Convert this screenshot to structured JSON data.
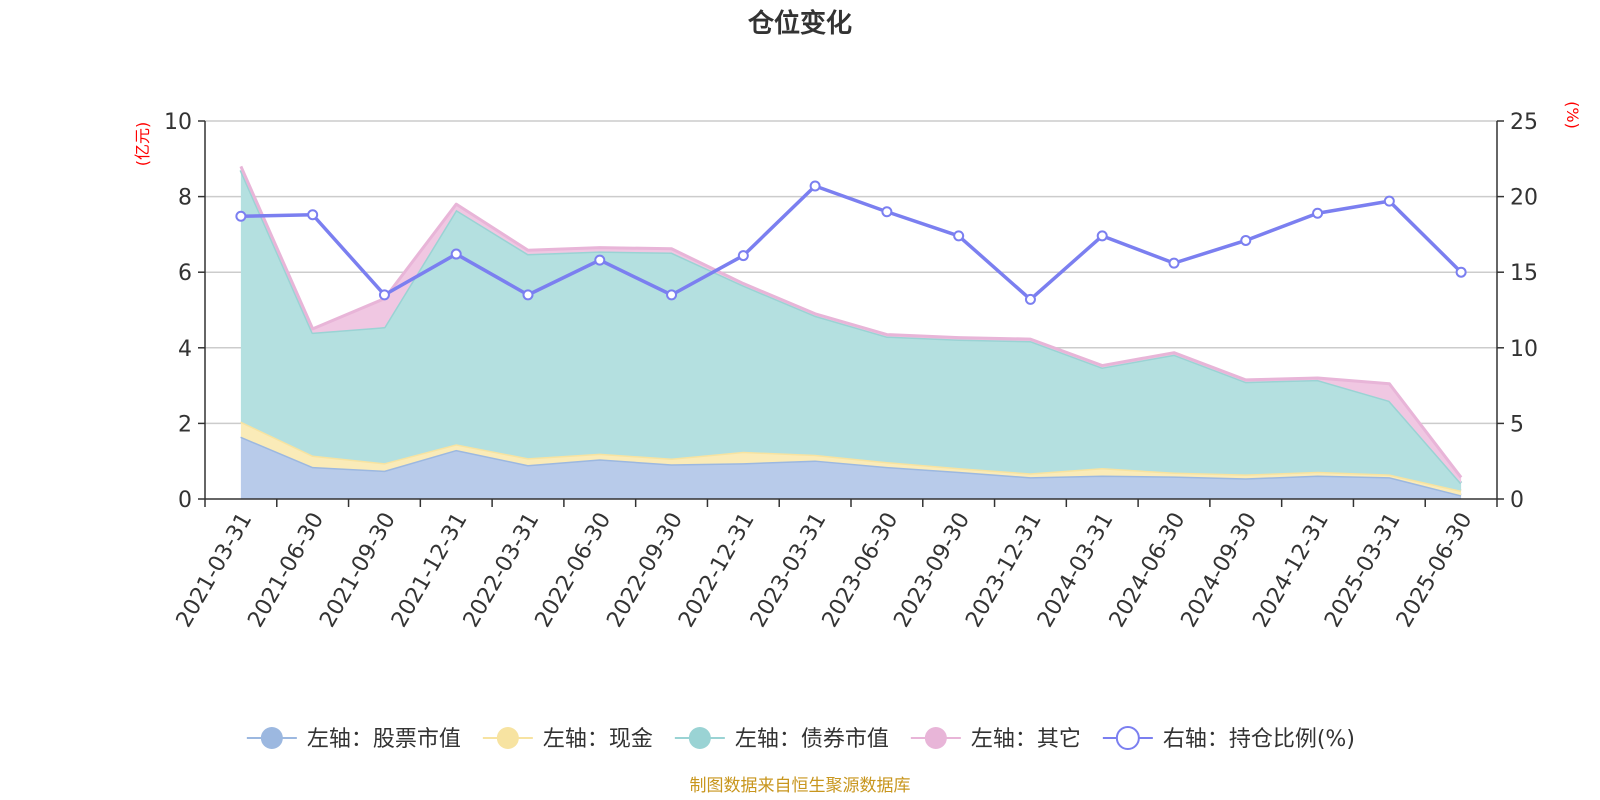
{
  "chart_data": {
    "type": "area",
    "title": "仓位变化",
    "left_axis": {
      "unit": "(亿元)",
      "min": 0,
      "max": 10,
      "ticks": [
        0,
        2,
        4,
        6,
        8,
        10
      ]
    },
    "right_axis": {
      "unit": "(%)",
      "min": 0,
      "max": 25,
      "ticks": [
        0,
        5,
        10,
        15,
        20,
        25
      ]
    },
    "grid": true,
    "legend_position": "bottom",
    "categories": [
      "2021-03-31",
      "2021-06-30",
      "2021-09-30",
      "2021-12-31",
      "2022-03-31",
      "2022-06-30",
      "2022-09-30",
      "2022-12-31",
      "2023-03-31",
      "2023-06-30",
      "2023-09-30",
      "2023-12-31",
      "2024-03-31",
      "2024-06-30",
      "2024-09-30",
      "2024-12-31",
      "2025-03-31",
      "2025-06-30"
    ],
    "series": [
      {
        "name": "左轴：股票市值",
        "axis": "left",
        "kind": "stacked-area",
        "color": "#9cb8e0",
        "fill": "#b8cbea",
        "values": [
          1.65,
          0.85,
          0.75,
          1.3,
          0.9,
          1.05,
          0.92,
          0.95,
          1.02,
          0.85,
          0.72,
          0.58,
          0.62,
          0.6,
          0.55,
          0.62,
          0.58,
          0.1
        ]
      },
      {
        "name": "左轴：现金",
        "axis": "left",
        "kind": "stacked-area",
        "color": "#f7e3a1",
        "fill": "#faebb8",
        "values": [
          0.4,
          0.3,
          0.2,
          0.15,
          0.18,
          0.15,
          0.15,
          0.3,
          0.15,
          0.13,
          0.1,
          0.1,
          0.2,
          0.1,
          0.1,
          0.1,
          0.07,
          0.12
        ]
      },
      {
        "name": "左轴：债券市值",
        "axis": "left",
        "kind": "stacked-area",
        "color": "#9ad3d4",
        "fill": "#b4e0e0",
        "values": [
          6.65,
          3.25,
          3.6,
          6.2,
          5.4,
          5.35,
          5.45,
          4.4,
          3.68,
          3.32,
          3.4,
          3.5,
          2.66,
          3.12,
          2.45,
          2.43,
          1.95,
          0.2
        ]
      },
      {
        "name": "左轴：其它",
        "axis": "left",
        "kind": "stacked-area",
        "color": "#e8b5d8",
        "fill": "#f0c7e2",
        "values": [
          0.1,
          0.1,
          0.75,
          0.15,
          0.1,
          0.1,
          0.1,
          0.05,
          0.05,
          0.05,
          0.05,
          0.05,
          0.05,
          0.05,
          0.05,
          0.05,
          0.45,
          0.15
        ]
      },
      {
        "name": "右轴：持仓比例(%)",
        "axis": "right",
        "kind": "line",
        "color": "#7b7ff0",
        "values": [
          18.7,
          18.8,
          13.5,
          16.2,
          13.5,
          15.8,
          13.5,
          16.1,
          20.7,
          19.0,
          17.4,
          13.2,
          17.4,
          15.6,
          17.1,
          18.9,
          19.7,
          15.0
        ]
      }
    ]
  },
  "footer": {
    "source_text": "制图数据来自恒生聚源数据库"
  }
}
